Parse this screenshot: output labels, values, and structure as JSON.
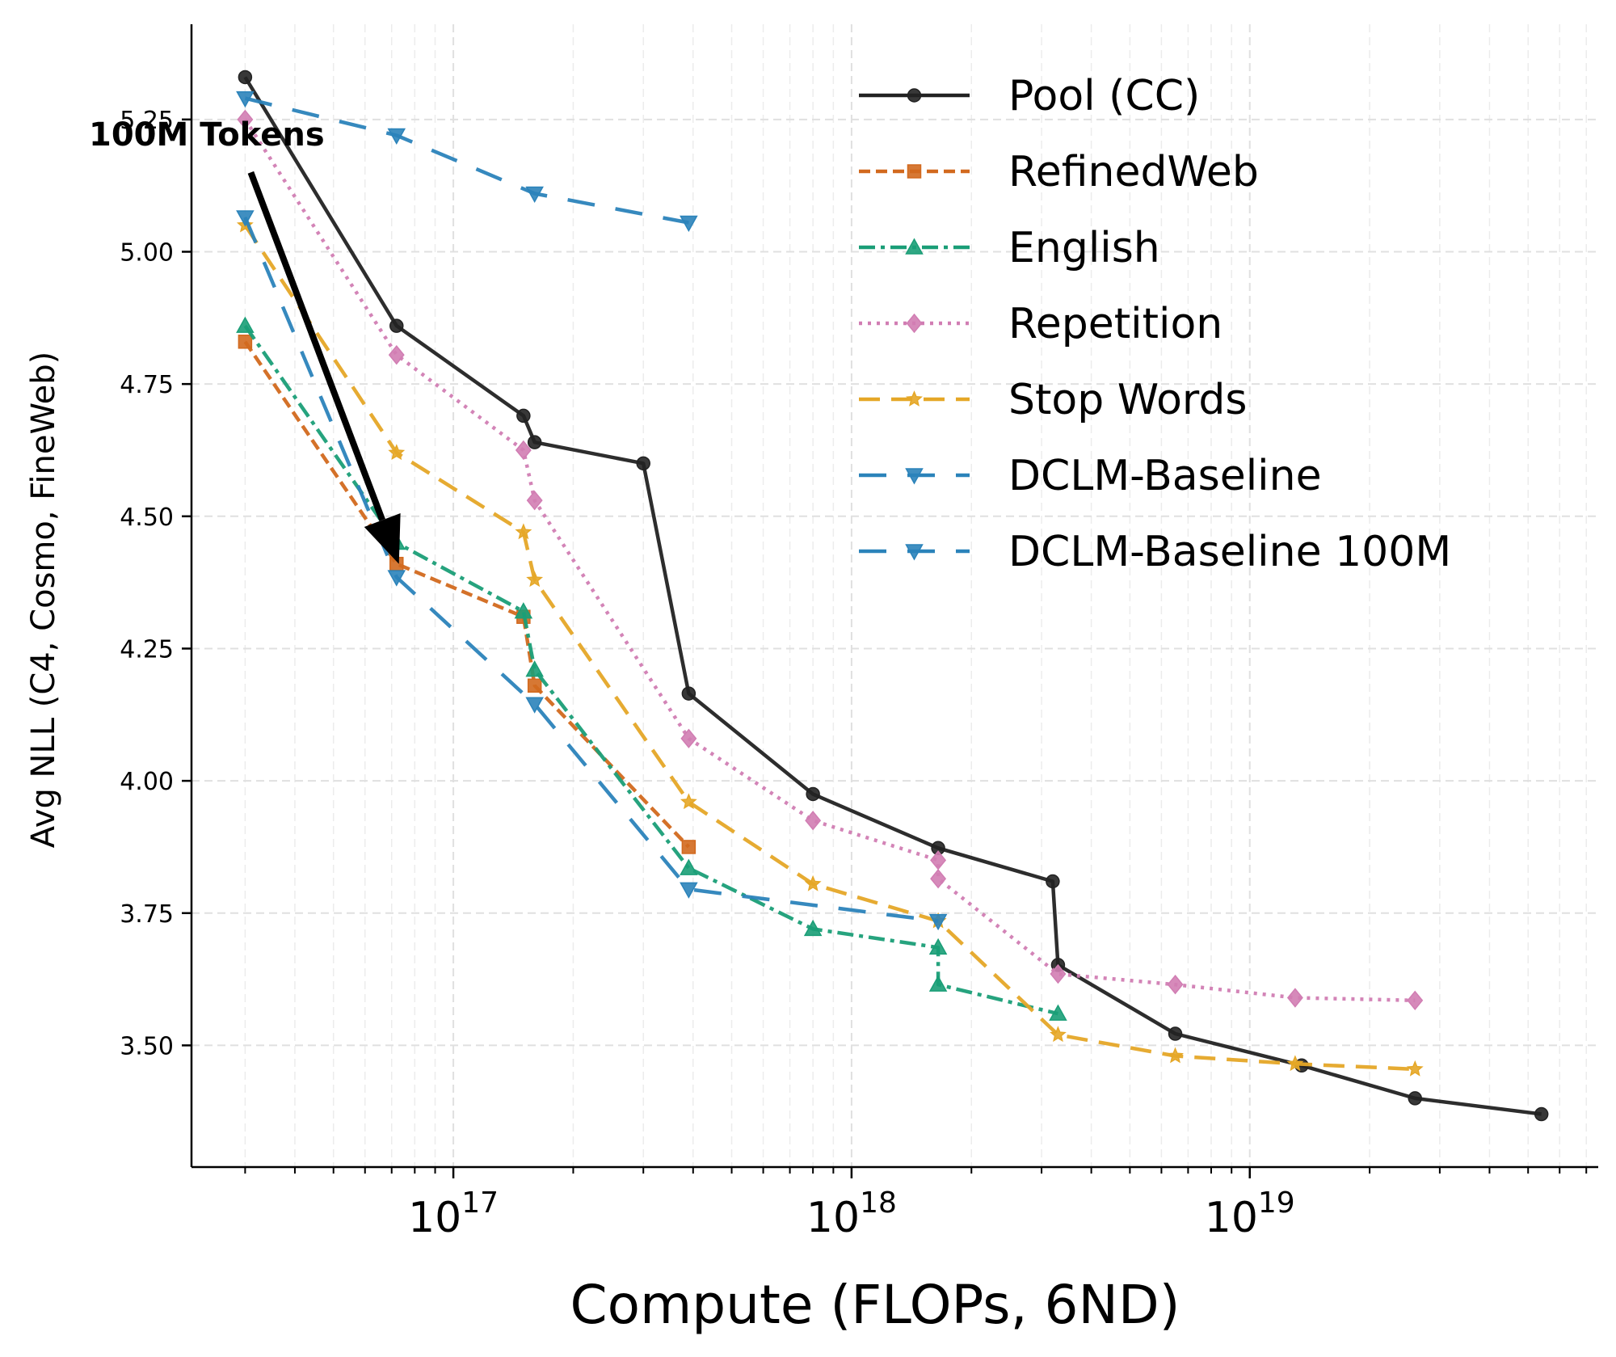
{
  "chart_data": {
    "type": "line",
    "xlabel": "Compute (FLOPs, 6ND)",
    "ylabel": "Avg NLL (C4, Cosmo, FineWeb)",
    "xscale": "log",
    "xlim": [
      2.2e+16,
      7.5e+19
    ],
    "ylim": [
      3.27,
      5.43
    ],
    "grid": true,
    "legend_position": "top-right",
    "x_ticks": [
      {
        "value": 1e+17,
        "base": "10",
        "exp": "17"
      },
      {
        "value": 1e+18,
        "base": "10",
        "exp": "18"
      },
      {
        "value": 1e+19,
        "base": "10",
        "exp": "19"
      }
    ],
    "y_ticks": [
      {
        "value": 3.5,
        "label": "3.50"
      },
      {
        "value": 3.75,
        "label": "3.75"
      },
      {
        "value": 4.0,
        "label": "4.00"
      },
      {
        "value": 4.25,
        "label": "4.25"
      },
      {
        "value": 4.5,
        "label": "4.50"
      },
      {
        "value": 4.75,
        "label": "4.75"
      },
      {
        "value": 5.0,
        "label": "5.00"
      },
      {
        "value": 5.25,
        "label": "5.25"
      }
    ],
    "series": [
      {
        "name": "Pool (CC)",
        "color": "#222222",
        "marker": "circle",
        "dash": "solid",
        "points": [
          [
            3e+16,
            5.33
          ],
          [
            7.2e+16,
            4.86
          ],
          [
            1.5e+17,
            4.69
          ],
          [
            1.6e+17,
            4.64
          ],
          [
            3e+17,
            4.6
          ],
          [
            3.9e+17,
            4.165
          ],
          [
            8e+17,
            3.975
          ],
          [
            1.65e+18,
            3.873
          ],
          [
            3.2e+18,
            3.81
          ],
          [
            3.3e+18,
            3.652
          ],
          [
            6.5e+18,
            3.522
          ],
          [
            1.35e+19,
            3.462
          ],
          [
            2.6e+19,
            3.4
          ],
          [
            5.4e+19,
            3.37
          ]
        ]
      },
      {
        "name": "RefinedWeb",
        "color": "#d2691e",
        "marker": "square",
        "dash": "dashed",
        "points": [
          [
            3e+16,
            4.83
          ],
          [
            7.2e+16,
            4.41
          ],
          [
            1.5e+17,
            4.31
          ],
          [
            1.6e+17,
            4.18
          ],
          [
            3.9e+17,
            3.875
          ]
        ]
      },
      {
        "name": "English",
        "color": "#1a9e77",
        "marker": "triangle-up",
        "dash": "dashdot",
        "points": [
          [
            3e+16,
            4.86
          ],
          [
            7.2e+16,
            4.45
          ],
          [
            1.5e+17,
            4.32
          ],
          [
            1.6e+17,
            4.21
          ],
          [
            3.9e+17,
            3.835
          ],
          [
            8e+17,
            3.72
          ],
          [
            1.65e+18,
            3.685
          ],
          [
            1.65e+18,
            3.615
          ],
          [
            3.3e+18,
            3.56
          ]
        ]
      },
      {
        "name": "Repetition",
        "color": "#d17db3",
        "marker": "diamond",
        "dash": "dotted",
        "points": [
          [
            3e+16,
            5.25
          ],
          [
            7.2e+16,
            4.805
          ],
          [
            1.5e+17,
            4.625
          ],
          [
            1.6e+17,
            4.53
          ],
          [
            3.9e+17,
            4.08
          ],
          [
            8e+17,
            3.925
          ],
          [
            1.65e+18,
            3.85
          ],
          [
            1.65e+18,
            3.815
          ],
          [
            3.3e+18,
            3.635
          ],
          [
            6.5e+18,
            3.615
          ],
          [
            1.3e+19,
            3.59
          ],
          [
            2.6e+19,
            3.585
          ]
        ]
      },
      {
        "name": "Stop Words",
        "color": "#e5a727",
        "marker": "star",
        "dash": "longdash",
        "points": [
          [
            3e+16,
            5.05
          ],
          [
            7.2e+16,
            4.62
          ],
          [
            1.5e+17,
            4.47
          ],
          [
            1.6e+17,
            4.38
          ],
          [
            3.9e+17,
            3.96
          ],
          [
            8e+17,
            3.805
          ],
          [
            1.65e+18,
            3.735
          ],
          [
            3.3e+18,
            3.52
          ],
          [
            6.5e+18,
            3.48
          ],
          [
            1.3e+19,
            3.465
          ],
          [
            2.6e+19,
            3.455
          ]
        ]
      },
      {
        "name": "DCLM-Baseline",
        "color": "#2b83ba",
        "marker": "triangle-down",
        "dash": "sparse",
        "points": [
          [
            3e+16,
            5.065
          ],
          [
            7.2e+16,
            4.385
          ],
          [
            1.6e+17,
            4.145
          ],
          [
            3.9e+17,
            3.795
          ],
          [
            1.65e+18,
            3.735
          ]
        ]
      },
      {
        "name": "DCLM-Baseline 100M",
        "color": "#2b83ba",
        "marker": "triangle-down",
        "dash": "sparse",
        "points": [
          [
            3e+16,
            5.29
          ],
          [
            7.2e+16,
            5.22
          ],
          [
            1.6e+17,
            5.11
          ],
          [
            3.9e+17,
            5.055
          ]
        ]
      }
    ],
    "annotations": [
      {
        "text": "100M Tokens",
        "from": [
          3.1e+16,
          5.15
        ],
        "to": [
          7.3e+16,
          4.41
        ]
      }
    ]
  }
}
